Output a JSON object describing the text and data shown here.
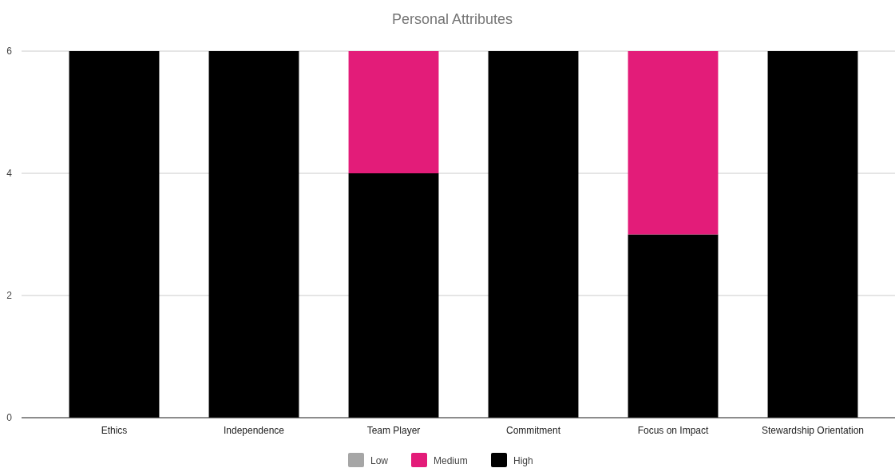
{
  "chart_data": {
    "type": "bar",
    "title": "Personal Attributes",
    "stacked": true,
    "categories": [
      "Ethics",
      "Independence",
      "Team Player",
      "Commitment",
      "Focus on Impact",
      "Stewardship Orientation"
    ],
    "series": [
      {
        "name": "High",
        "color": "#000000",
        "values": [
          6,
          6,
          4,
          6,
          3,
          6
        ]
      },
      {
        "name": "Medium",
        "color": "#e31c79",
        "values": [
          0,
          0,
          2,
          0,
          3,
          0
        ]
      },
      {
        "name": "Low",
        "color": "#a6a6a6",
        "values": [
          0,
          0,
          0,
          0,
          0,
          0
        ]
      }
    ],
    "ylim": [
      0,
      6
    ],
    "yticks": [
      0,
      2,
      4,
      6
    ],
    "grid": "y",
    "legend": "bottom"
  }
}
